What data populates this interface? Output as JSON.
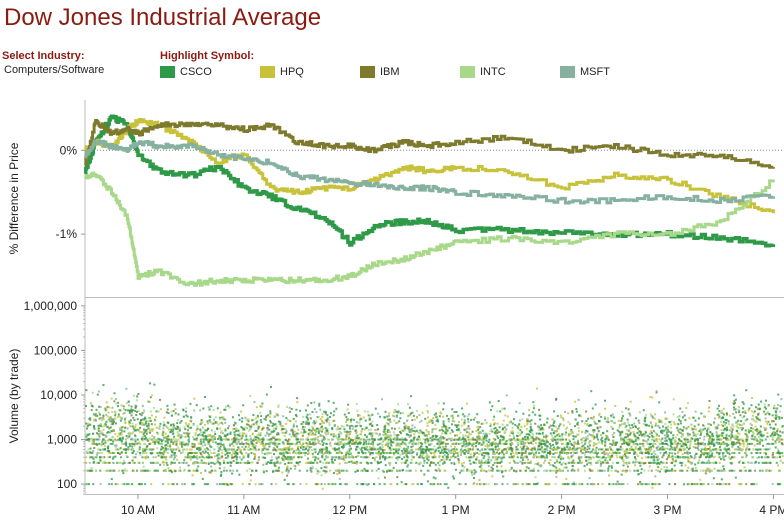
{
  "title": "Dow Jones Industrial Average",
  "industry": {
    "label": "Select Industry:",
    "value": "Computers/Software"
  },
  "highlight": {
    "label": "Highlight Symbol:",
    "symbols": [
      {
        "name": "CSCO",
        "color": "#2e9a48"
      },
      {
        "name": "HPQ",
        "color": "#c8c23a"
      },
      {
        "name": "IBM",
        "color": "#7d7a2e"
      },
      {
        "name": "INTC",
        "color": "#a8d88a"
      },
      {
        "name": "MSFT",
        "color": "#86b0a0"
      }
    ]
  },
  "chart_data": [
    {
      "type": "line",
      "title": "",
      "xlabel": "",
      "ylabel": "% Difference in Price",
      "ylim": [
        -1.75,
        0.6
      ],
      "yticks": [
        "0%",
        "-1%"
      ],
      "xticks": [
        "10 AM",
        "11 AM",
        "12 PM",
        "1 PM",
        "2 PM",
        "3 PM",
        "4 PM"
      ],
      "x_hours": [
        9.5,
        9.6,
        9.75,
        9.9,
        10.0,
        10.2,
        10.5,
        10.75,
        11.0,
        11.25,
        11.5,
        11.75,
        12.0,
        12.25,
        12.5,
        12.75,
        13.0,
        13.5,
        14.0,
        14.5,
        15.0,
        15.5,
        16.0
      ],
      "reference_line": 0,
      "series": [
        {
          "name": "CSCO",
          "color": "#2e9a48",
          "values": [
            -0.25,
            0.1,
            0.4,
            0.3,
            -0.05,
            -0.25,
            -0.3,
            -0.2,
            -0.45,
            -0.55,
            -0.7,
            -0.8,
            -1.1,
            -0.9,
            -0.85,
            -0.85,
            -0.95,
            -0.95,
            -0.98,
            -1.0,
            -1.0,
            -1.05,
            -1.12
          ]
        },
        {
          "name": "HPQ",
          "color": "#c8c23a",
          "values": [
            0.0,
            0.1,
            0.05,
            0.25,
            0.35,
            0.3,
            0.1,
            -0.15,
            -0.05,
            -0.45,
            -0.5,
            -0.45,
            -0.45,
            -0.35,
            -0.2,
            -0.25,
            -0.2,
            -0.25,
            -0.45,
            -0.3,
            -0.35,
            -0.55,
            -0.75
          ]
        },
        {
          "name": "IBM",
          "color": "#7d7a2e",
          "values": [
            -0.15,
            0.35,
            0.2,
            0.25,
            0.2,
            0.3,
            0.3,
            0.3,
            0.25,
            0.3,
            0.1,
            0.05,
            0.05,
            0.0,
            0.1,
            0.05,
            0.1,
            0.15,
            0.0,
            0.05,
            -0.05,
            -0.05,
            -0.2
          ]
        },
        {
          "name": "INTC",
          "color": "#a8d88a",
          "values": [
            -0.3,
            -0.3,
            -0.5,
            -0.8,
            -1.5,
            -1.45,
            -1.6,
            -1.55,
            -1.55,
            -1.55,
            -1.55,
            -1.55,
            -1.5,
            -1.35,
            -1.3,
            -1.2,
            -1.1,
            -1.05,
            -1.1,
            -1.0,
            -1.0,
            -0.85,
            -0.35
          ]
        },
        {
          "name": "MSFT",
          "color": "#86b0a0",
          "values": [
            -0.05,
            0.1,
            0.05,
            0.0,
            0.1,
            0.05,
            0.05,
            -0.05,
            -0.1,
            -0.15,
            -0.3,
            -0.35,
            -0.4,
            -0.4,
            -0.45,
            -0.45,
            -0.5,
            -0.55,
            -0.6,
            -0.6,
            -0.55,
            -0.6,
            -0.55
          ]
        }
      ]
    },
    {
      "type": "scatter",
      "title": "",
      "xlabel": "",
      "ylabel": "Volume (by trade)",
      "yscale": "log",
      "ylim": [
        60,
        1500000
      ],
      "yticks": [
        "1,000,000",
        "100,000",
        "10,000",
        "1,000",
        "100"
      ],
      "ytick_values": [
        1000000,
        100000,
        10000,
        1000,
        100
      ],
      "xticks": [
        "10 AM",
        "11 AM",
        "12 PM",
        "1 PM",
        "2 PM",
        "3 PM",
        "4 PM"
      ],
      "x_range_hours": [
        9.5,
        16.1
      ],
      "series_colors": [
        "#2e9a48",
        "#c8c23a",
        "#7d7a2e",
        "#a8d88a",
        "#86b0a0"
      ],
      "dense_volume_levels": [
        100,
        200,
        300,
        400,
        500,
        600,
        800,
        1000
      ],
      "typical_range": [
        100,
        100000
      ]
    }
  ]
}
